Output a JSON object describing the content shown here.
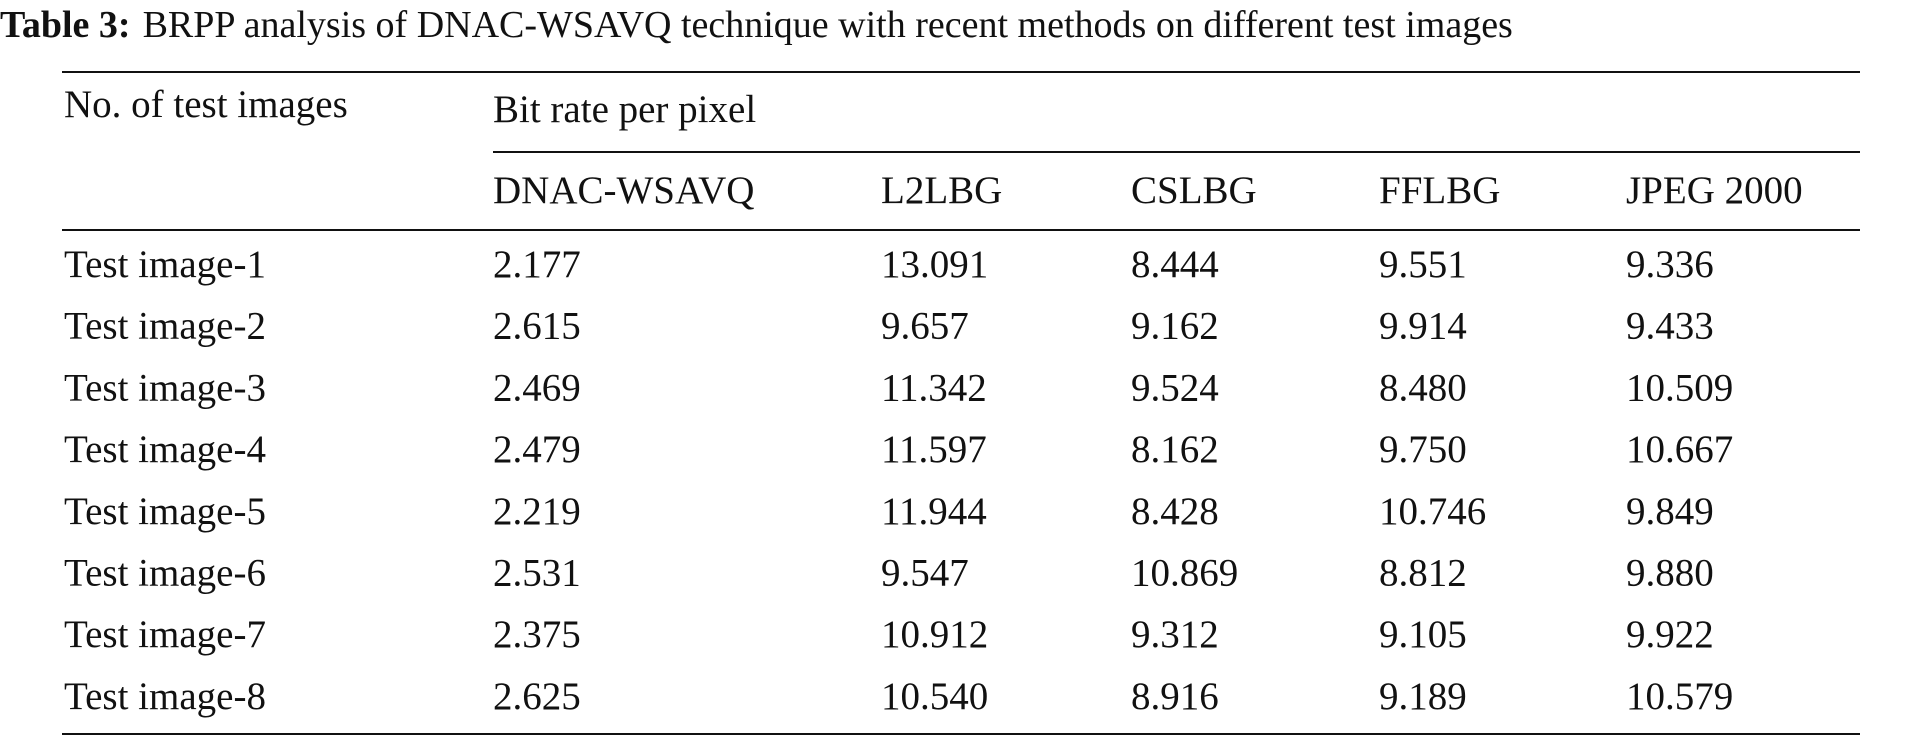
{
  "caption": {
    "label": "Table 3:",
    "text": "BRPP analysis of DNAC-WSAVQ technique with recent methods on different test images"
  },
  "table": {
    "row_header": "No. of test images",
    "group_header": "Bit rate per pixel",
    "columns": [
      "DNAC-WSAVQ",
      "L2LBG",
      "CSLBG",
      "FFLBG",
      "JPEG 2000"
    ],
    "rows": [
      [
        "Test image-1",
        "2.177",
        "13.091",
        "8.444",
        "9.551",
        "9.336"
      ],
      [
        "Test image-2",
        "2.615",
        "9.657",
        "9.162",
        "9.914",
        "9.433"
      ],
      [
        "Test image-3",
        "2.469",
        "11.342",
        "9.524",
        "8.480",
        "10.509"
      ],
      [
        "Test image-4",
        "2.479",
        "11.597",
        "8.162",
        "9.750",
        "10.667"
      ],
      [
        "Test image-5",
        "2.219",
        "11.944",
        "8.428",
        "10.746",
        "9.849"
      ],
      [
        "Test image-6",
        "2.531",
        "9.547",
        "10.869",
        "8.812",
        "9.880"
      ],
      [
        "Test image-7",
        "2.375",
        "10.912",
        "9.312",
        "9.105",
        "9.922"
      ],
      [
        "Test image-8",
        "2.625",
        "10.540",
        "8.916",
        "9.189",
        "10.579"
      ]
    ]
  }
}
